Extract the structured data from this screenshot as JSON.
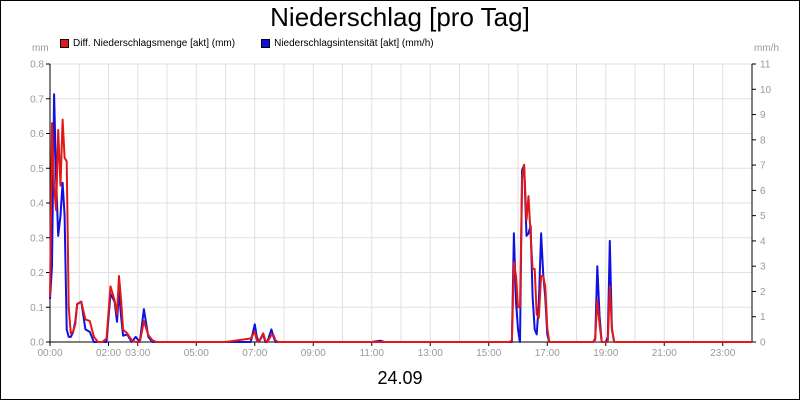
{
  "chart_data": {
    "type": "line",
    "title": "Niederschlag [pro Tag]",
    "date_label": "24.09",
    "y_left_unit": "mm",
    "y_right_unit": "mm/h",
    "y_left_range": [
      0,
      0.8
    ],
    "y_right_range": [
      0,
      11
    ],
    "y_left_ticks": [
      "0.0",
      "0.1",
      "0.2",
      "0.3",
      "0.4",
      "0.5",
      "0.6",
      "0.7",
      "0.8"
    ],
    "y_right_ticks": [
      "0",
      "1",
      "2",
      "3",
      "4",
      "5",
      "6",
      "7",
      "8",
      "9",
      "10",
      "11"
    ],
    "x_range_hours": [
      0,
      24
    ],
    "x_ticks": [
      {
        "h": 0,
        "label": "00:00"
      },
      {
        "h": 2,
        "label": "02:00"
      },
      {
        "h": 3,
        "label": "03:00"
      },
      {
        "h": 5,
        "label": "05:00"
      },
      {
        "h": 7,
        "label": "07:00"
      },
      {
        "h": 9,
        "label": "09:00"
      },
      {
        "h": 11,
        "label": "11:00"
      },
      {
        "h": 13,
        "label": "13:00"
      },
      {
        "h": 15,
        "label": "15:00"
      },
      {
        "h": 17,
        "label": "17:00"
      },
      {
        "h": 19,
        "label": "19:00"
      },
      {
        "h": 21,
        "label": "21:00"
      },
      {
        "h": 23,
        "label": "23:00"
      }
    ],
    "grid": true,
    "legend_position": "top-left",
    "series": [
      {
        "name": "Diff. Niederschlagsmenge [akt] (mm)",
        "axis": "left",
        "color": "#e01818",
        "x": [
          0,
          0.07,
          0.14,
          0.21,
          0.28,
          0.36,
          0.43,
          0.5,
          0.57,
          0.64,
          0.71,
          0.79,
          0.86,
          0.93,
          1.07,
          1.21,
          1.36,
          1.5,
          1.64,
          1.79,
          1.93,
          2.07,
          2.21,
          2.29,
          2.36,
          2.43,
          2.5,
          2.64,
          2.79,
          2.93,
          3.07,
          3.21,
          3.36,
          3.5,
          3.64,
          3.79,
          4,
          6,
          6.86,
          7,
          7.07,
          7.14,
          7.29,
          7.36,
          7.43,
          7.57,
          7.64,
          7.71,
          7.79,
          8,
          11,
          11.29,
          11.43,
          15,
          15.64,
          15.71,
          15.79,
          15.86,
          15.93,
          16,
          16.07,
          16.14,
          16.21,
          16.29,
          16.36,
          16.43,
          16.5,
          16.57,
          16.64,
          16.71,
          16.79,
          16.86,
          16.93,
          17,
          17.07,
          17.14,
          17.21,
          17.29,
          17.36,
          18,
          18.43,
          18.57,
          18.64,
          18.71,
          18.79,
          18.86,
          19,
          19.07,
          19.14,
          19.21,
          19.29,
          19.36,
          24
        ],
        "values": [
          0.13,
          0.63,
          0.45,
          0.38,
          0.61,
          0.45,
          0.64,
          0.53,
          0.52,
          0.1,
          0.025,
          0.03,
          0.05,
          0.11,
          0.115,
          0.065,
          0.06,
          0.015,
          0,
          0,
          0.01,
          0.16,
          0.12,
          0.08,
          0.19,
          0.12,
          0.035,
          0.025,
          0.005,
          0,
          0,
          0.06,
          0.02,
          0.005,
          0,
          0,
          0,
          0,
          0.01,
          0.03,
          0.005,
          0,
          0.025,
          0.005,
          0,
          0.02,
          0.02,
          0.005,
          0,
          0,
          0,
          0,
          0,
          0,
          0,
          0,
          0.005,
          0.23,
          0.19,
          0.1,
          0.1,
          0.47,
          0.51,
          0.35,
          0.42,
          0.31,
          0.21,
          0.21,
          0.08,
          0.07,
          0.19,
          0.19,
          0.16,
          0.04,
          0,
          0,
          0,
          0,
          0,
          0,
          0,
          0,
          0.01,
          0.12,
          0.05,
          0,
          0,
          0,
          0.16,
          0.04,
          0,
          0,
          0
        ]
      },
      {
        "name": "Niederschlagsintensität [akt] (mm/h)",
        "axis": "right",
        "color": "#1010e0",
        "x": [
          0,
          0.07,
          0.14,
          0.21,
          0.28,
          0.36,
          0.43,
          0.5,
          0.57,
          0.64,
          0.71,
          0.79,
          0.86,
          0.93,
          1.07,
          1.21,
          1.36,
          1.5,
          1.64,
          1.79,
          1.93,
          2.07,
          2.21,
          2.29,
          2.36,
          2.43,
          2.5,
          2.64,
          2.79,
          2.93,
          3.07,
          3.21,
          3.36,
          3.5,
          3.64,
          3.79,
          4,
          6,
          6.86,
          7,
          7.07,
          7.14,
          7.29,
          7.36,
          7.43,
          7.57,
          7.64,
          7.71,
          7.79,
          8,
          11,
          11.29,
          11.43,
          15,
          15.64,
          15.71,
          15.79,
          15.86,
          15.93,
          16,
          16.07,
          16.14,
          16.21,
          16.29,
          16.36,
          16.43,
          16.5,
          16.57,
          16.64,
          16.71,
          16.79,
          16.86,
          16.93,
          17,
          17.07,
          17.14,
          17.21,
          17.29,
          17.36,
          18,
          18.43,
          18.57,
          18.64,
          18.71,
          18.79,
          18.86,
          19,
          19.07,
          19.14,
          19.21,
          19.29,
          19.36,
          24
        ],
        "values": [
          1.7,
          3.0,
          9.8,
          6.5,
          4.2,
          5.0,
          6.3,
          5.0,
          0.5,
          0.2,
          0.2,
          0.4,
          0.8,
          1.5,
          1.6,
          0.5,
          0.4,
          0,
          0,
          0,
          0,
          1.9,
          1.6,
          0.8,
          2.0,
          1.0,
          0.25,
          0.3,
          0,
          0.2,
          0,
          1.3,
          0.2,
          0,
          0,
          0,
          0,
          0,
          0,
          0.7,
          0.2,
          0,
          0.3,
          0,
          0,
          0.5,
          0.2,
          0,
          0,
          0,
          0,
          0.05,
          0,
          0,
          0,
          0,
          0,
          4.3,
          1.6,
          0.5,
          0,
          6.8,
          7.0,
          4.2,
          4.3,
          4.6,
          1.8,
          0.5,
          0.3,
          1.5,
          4.3,
          2.7,
          1.8,
          0.3,
          0,
          0,
          0,
          0,
          0,
          0,
          0,
          0,
          0.1,
          3.0,
          1.0,
          0,
          0,
          0.2,
          4.0,
          0.5,
          0,
          0,
          0
        ]
      }
    ]
  }
}
